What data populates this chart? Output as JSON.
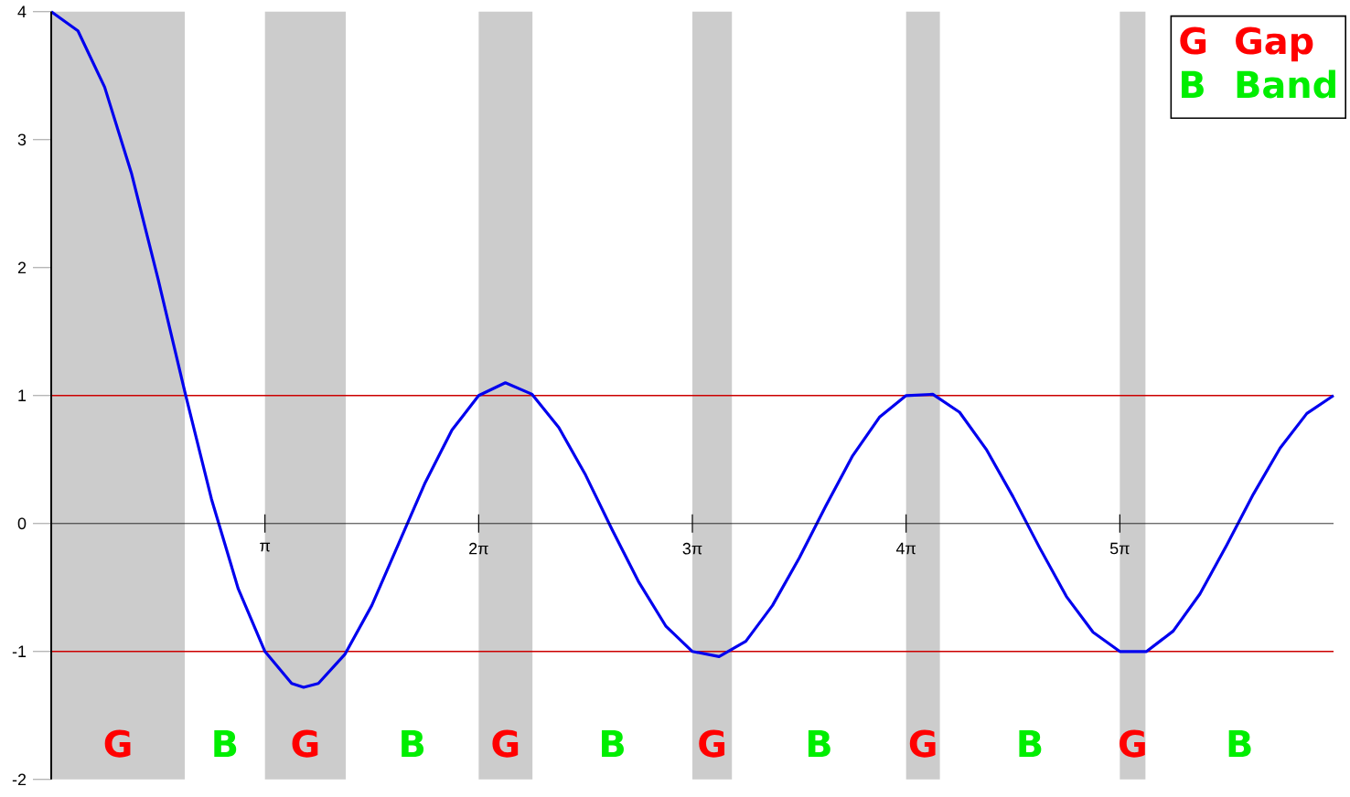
{
  "chart_data": {
    "type": "line",
    "xlim": [
      0,
      18.8496
    ],
    "ylim": [
      -2,
      4
    ],
    "xticks": [
      {
        "value": 3.1416,
        "label": "π"
      },
      {
        "value": 6.2832,
        "label": "2π"
      },
      {
        "value": 9.4248,
        "label": "3π"
      },
      {
        "value": 12.5664,
        "label": "4π"
      },
      {
        "value": 15.708,
        "label": "5π"
      }
    ],
    "yticks": [
      -2,
      -1,
      0,
      1,
      2,
      3,
      4
    ],
    "series": [
      {
        "color": "#0000ee",
        "x": [
          0,
          0.3927,
          0.7854,
          1.1781,
          1.5708,
          1.9635,
          2.3562,
          2.7489,
          3.1416,
          3.5343,
          3.71,
          3.927,
          4.3197,
          4.7124,
          5.1051,
          5.4978,
          5.8905,
          6.2832,
          6.6759,
          7.0686,
          7.4613,
          7.854,
          8.2467,
          8.6394,
          9.0321,
          9.4248,
          9.8175,
          10.2102,
          10.6029,
          10.9956,
          11.3883,
          11.781,
          12.1737,
          12.5664,
          12.9591,
          13.3518,
          13.7445,
          14.1372,
          14.5299,
          14.9226,
          15.3153,
          15.708,
          16.1007,
          16.4934,
          16.8861,
          17.2788,
          17.6715,
          18.0642,
          18.4569,
          18.8496
        ],
        "values": [
          4,
          3.85,
          3.41,
          2.74,
          1.91,
          1.03,
          0.19,
          -0.51,
          -1,
          -1.25,
          -1.28,
          -1.25,
          -1.02,
          -0.64,
          -0.16,
          0.32,
          0.73,
          1,
          1.1,
          1.01,
          0.75,
          0.38,
          -0.05,
          -0.46,
          -0.8,
          -1,
          -1.04,
          -0.92,
          -0.64,
          -0.27,
          0.14,
          0.53,
          0.83,
          1,
          1.01,
          0.87,
          0.58,
          0.21,
          -0.19,
          -0.57,
          -0.85,
          -1,
          -1,
          -0.84,
          -0.55,
          -0.17,
          0.23,
          0.59,
          0.86,
          1
        ]
      }
    ],
    "ref_lines": [
      {
        "axis": "y",
        "value": 1,
        "color": "#cc0000"
      },
      {
        "axis": "y",
        "value": -1,
        "color": "#cc0000"
      }
    ],
    "bands": [
      {
        "axis": "x",
        "from": 0,
        "to": 1.963,
        "label": "G",
        "color": "#cccccc"
      },
      {
        "axis": "x",
        "from": 3.1416,
        "to": 4.33,
        "label": "G",
        "color": "#cccccc"
      },
      {
        "axis": "x",
        "from": 6.2832,
        "to": 7.074,
        "label": "G",
        "color": "#cccccc"
      },
      {
        "axis": "x",
        "from": 9.4248,
        "to": 10.006,
        "label": "G",
        "color": "#cccccc"
      },
      {
        "axis": "x",
        "from": 12.5664,
        "to": 13.063,
        "label": "G",
        "color": "#cccccc"
      },
      {
        "axis": "x",
        "from": 15.708,
        "to": 16.085,
        "label": "G",
        "color": "#cccccc"
      }
    ],
    "annotations": [
      "G",
      "Gap",
      "B",
      "Band",
      "B",
      "B",
      "B",
      "B",
      "B",
      "B"
    ]
  }
}
